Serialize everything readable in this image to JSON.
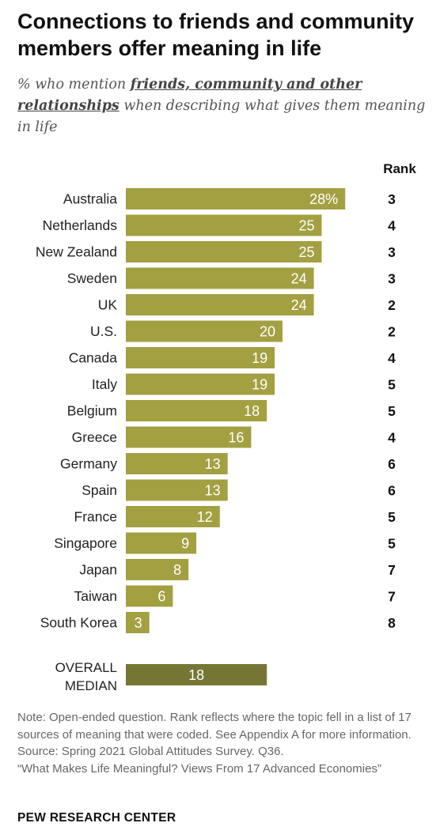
{
  "title": "Connections to friends and community members offer meaning in life",
  "subtitle": {
    "prefix": "% who mention ",
    "emphasis": "friends, community and other relationships",
    "suffix": " when describing what gives them meaning in life"
  },
  "chart_data": {
    "type": "bar",
    "orientation": "horizontal",
    "rank_header": "Rank",
    "categories": [
      "Australia",
      "Netherlands",
      "New Zealand",
      "Sweden",
      "UK",
      "U.S.",
      "Canada",
      "Italy",
      "Belgium",
      "Greece",
      "Germany",
      "Spain",
      "France",
      "Singapore",
      "Japan",
      "Taiwan",
      "South Korea"
    ],
    "values": [
      28,
      25,
      25,
      24,
      24,
      20,
      19,
      19,
      18,
      16,
      13,
      13,
      12,
      9,
      8,
      6,
      3
    ],
    "value_labels": [
      "28%",
      "25",
      "25",
      "24",
      "24",
      "20",
      "19",
      "19",
      "18",
      "16",
      "13",
      "13",
      "12",
      "9",
      "8",
      "6",
      "3"
    ],
    "ranks": [
      "3",
      "4",
      "3",
      "3",
      "2",
      "2",
      "4",
      "5",
      "5",
      "4",
      "6",
      "6",
      "5",
      "5",
      "7",
      "7",
      "8"
    ],
    "median": {
      "label_line1": "OVERALL",
      "label_line2": "MEDIAN",
      "value": 18,
      "value_label": "18"
    },
    "bar_color": "#a3a042",
    "median_color": "#757634"
  },
  "notes": {
    "note": "Note: Open-ended question. Rank reflects where the topic fell in a list of 17 sources of meaning that were coded. See Appendix A for more information.",
    "source": "Source: Spring 2021 Global Attitudes Survey. Q36.",
    "report": "“What Makes Life Meaningful? Views From 17 Advanced Economies”"
  },
  "brand": "PEW RESEARCH CENTER"
}
